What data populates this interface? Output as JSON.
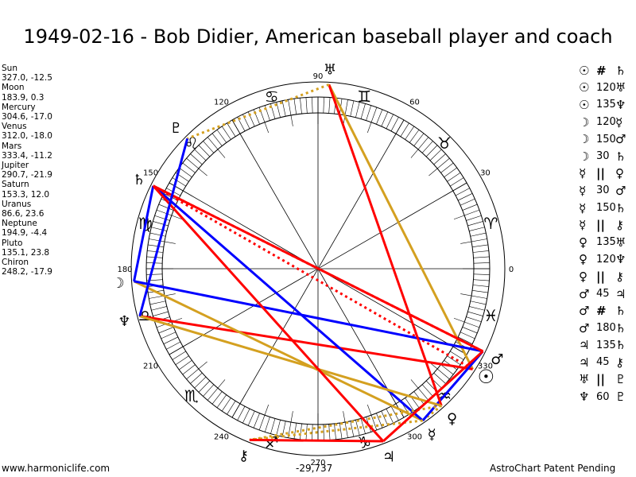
{
  "title": "1949-02-16 - Bob Didier, American baseball player and coach",
  "planets": [
    {
      "name": "Sun",
      "glyph": "☉",
      "lon": 327.0,
      "lat": -12.5,
      "pos": "327.0, -12.5"
    },
    {
      "name": "Moon",
      "glyph": "☽",
      "lon": 183.9,
      "lat": 0.3,
      "pos": "183.9, 0.3"
    },
    {
      "name": "Mercury",
      "glyph": "☿",
      "lon": 304.6,
      "lat": -17.0,
      "pos": "304.6, -17.0"
    },
    {
      "name": "Venus",
      "glyph": "♀",
      "lon": 312.0,
      "lat": -18.0,
      "pos": "312.0, -18.0"
    },
    {
      "name": "Mars",
      "glyph": "♂",
      "lon": 333.4,
      "lat": -11.2,
      "pos": "333.4, -11.2"
    },
    {
      "name": "Jupiter",
      "glyph": "♃",
      "lon": 290.7,
      "lat": -21.9,
      "pos": "290.7, -21.9"
    },
    {
      "name": "Saturn",
      "glyph": "♄",
      "lon": 153.3,
      "lat": 12.0,
      "pos": "153.3, 12.0"
    },
    {
      "name": "Uranus",
      "glyph": "♅",
      "lon": 86.6,
      "lat": 23.6,
      "pos": "86.6, 23.6"
    },
    {
      "name": "Neptune",
      "glyph": "♆",
      "lon": 194.9,
      "lat": -4.4,
      "pos": "194.9, -4.4"
    },
    {
      "name": "Pluto",
      "glyph": "♇",
      "lon": 135.1,
      "lat": 23.8,
      "pos": "135.1, 23.8"
    },
    {
      "name": "Chiron",
      "glyph": "⚷",
      "lon": 248.2,
      "lat": -17.9,
      "pos": "248.2, -17.9"
    }
  ],
  "aspects": [
    {
      "p1": "Sun",
      "type": "#",
      "p2": "Saturn"
    },
    {
      "p1": "Sun",
      "type": "120",
      "p2": "Uranus"
    },
    {
      "p1": "Sun",
      "type": "135",
      "p2": "Neptune"
    },
    {
      "p1": "Moon",
      "type": "120",
      "p2": "Mercury"
    },
    {
      "p1": "Moon",
      "type": "150",
      "p2": "Mars"
    },
    {
      "p1": "Moon",
      "type": "30",
      "p2": "Saturn"
    },
    {
      "p1": "Mercury",
      "type": "||",
      "p2": "Venus"
    },
    {
      "p1": "Mercury",
      "type": "30",
      "p2": "Mars"
    },
    {
      "p1": "Mercury",
      "type": "150",
      "p2": "Saturn"
    },
    {
      "p1": "Mercury",
      "type": "||",
      "p2": "Chiron"
    },
    {
      "p1": "Venus",
      "type": "135",
      "p2": "Uranus"
    },
    {
      "p1": "Venus",
      "type": "120",
      "p2": "Neptune"
    },
    {
      "p1": "Venus",
      "type": "||",
      "p2": "Chiron"
    },
    {
      "p1": "Mars",
      "type": "45",
      "p2": "Jupiter"
    },
    {
      "p1": "Mars",
      "type": "#",
      "p2": "Saturn"
    },
    {
      "p1": "Mars",
      "type": "180",
      "p2": "Saturn"
    },
    {
      "p1": "Jupiter",
      "type": "135",
      "p2": "Saturn"
    },
    {
      "p1": "Jupiter",
      "type": "45",
      "p2": "Chiron"
    },
    {
      "p1": "Uranus",
      "type": "||",
      "p2": "Pluto"
    },
    {
      "p1": "Neptune",
      "type": "60",
      "p2": "Pluto"
    }
  ],
  "aspect_colors": {
    "180": "#ff0000",
    "135": "#ff0000",
    "45": "#ff0000",
    "#": "#ff0000",
    "120": "#d4a020",
    "||": "#d4a020",
    "60": "#0000ff",
    "150": "#0000ff",
    "30": "#0000ff"
  },
  "signs": [
    "♈",
    "♉",
    "♊",
    "♋",
    "♌",
    "♍",
    "♎",
    "♏",
    "♐",
    "♑",
    "♒",
    "♓"
  ],
  "degree_labels": [
    "0",
    "30",
    "60",
    "90",
    "120",
    "150",
    "180",
    "210",
    "240",
    "270",
    "300",
    "330"
  ],
  "footer": {
    "left": "www.harmoniclife.com",
    "center": "-29,737",
    "right": "AstroChart Patent Pending"
  }
}
